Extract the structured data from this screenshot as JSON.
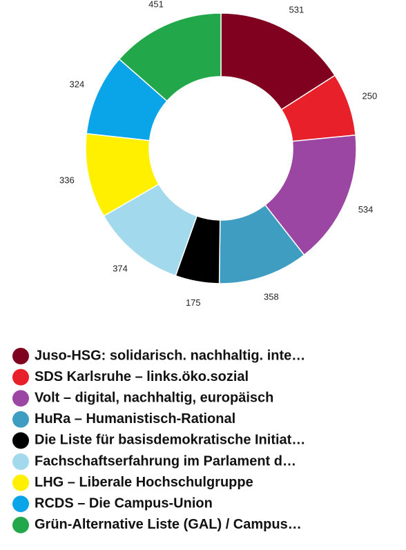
{
  "chart_data": {
    "type": "donut",
    "categories": [
      "Juso-HSG: solidarisch. nachhaltig. inte…",
      "SDS Karlsruhe – links.öko.sozial",
      "Volt – digital, nachhaltig, europäisch",
      "HuRa – Humanistisch-Rational",
      "Die Liste für basisdemokratische Initiat…",
      "Fachschaftserfahrung im Parlament d…",
      "LHG – Liberale Hochschulgruppe",
      "RCDS – Die Campus-Union",
      "Grün-Alternative Liste (GAL) / Campus…"
    ],
    "values": [
      531,
      250,
      534,
      358,
      175,
      374,
      336,
      324,
      451
    ],
    "colors": [
      "#800020",
      "#e8202a",
      "#9c46a4",
      "#3e9dc0",
      "#000000",
      "#a3d9ec",
      "#fff000",
      "#0aa4e8",
      "#22a84a"
    ],
    "legend": "bottom"
  }
}
